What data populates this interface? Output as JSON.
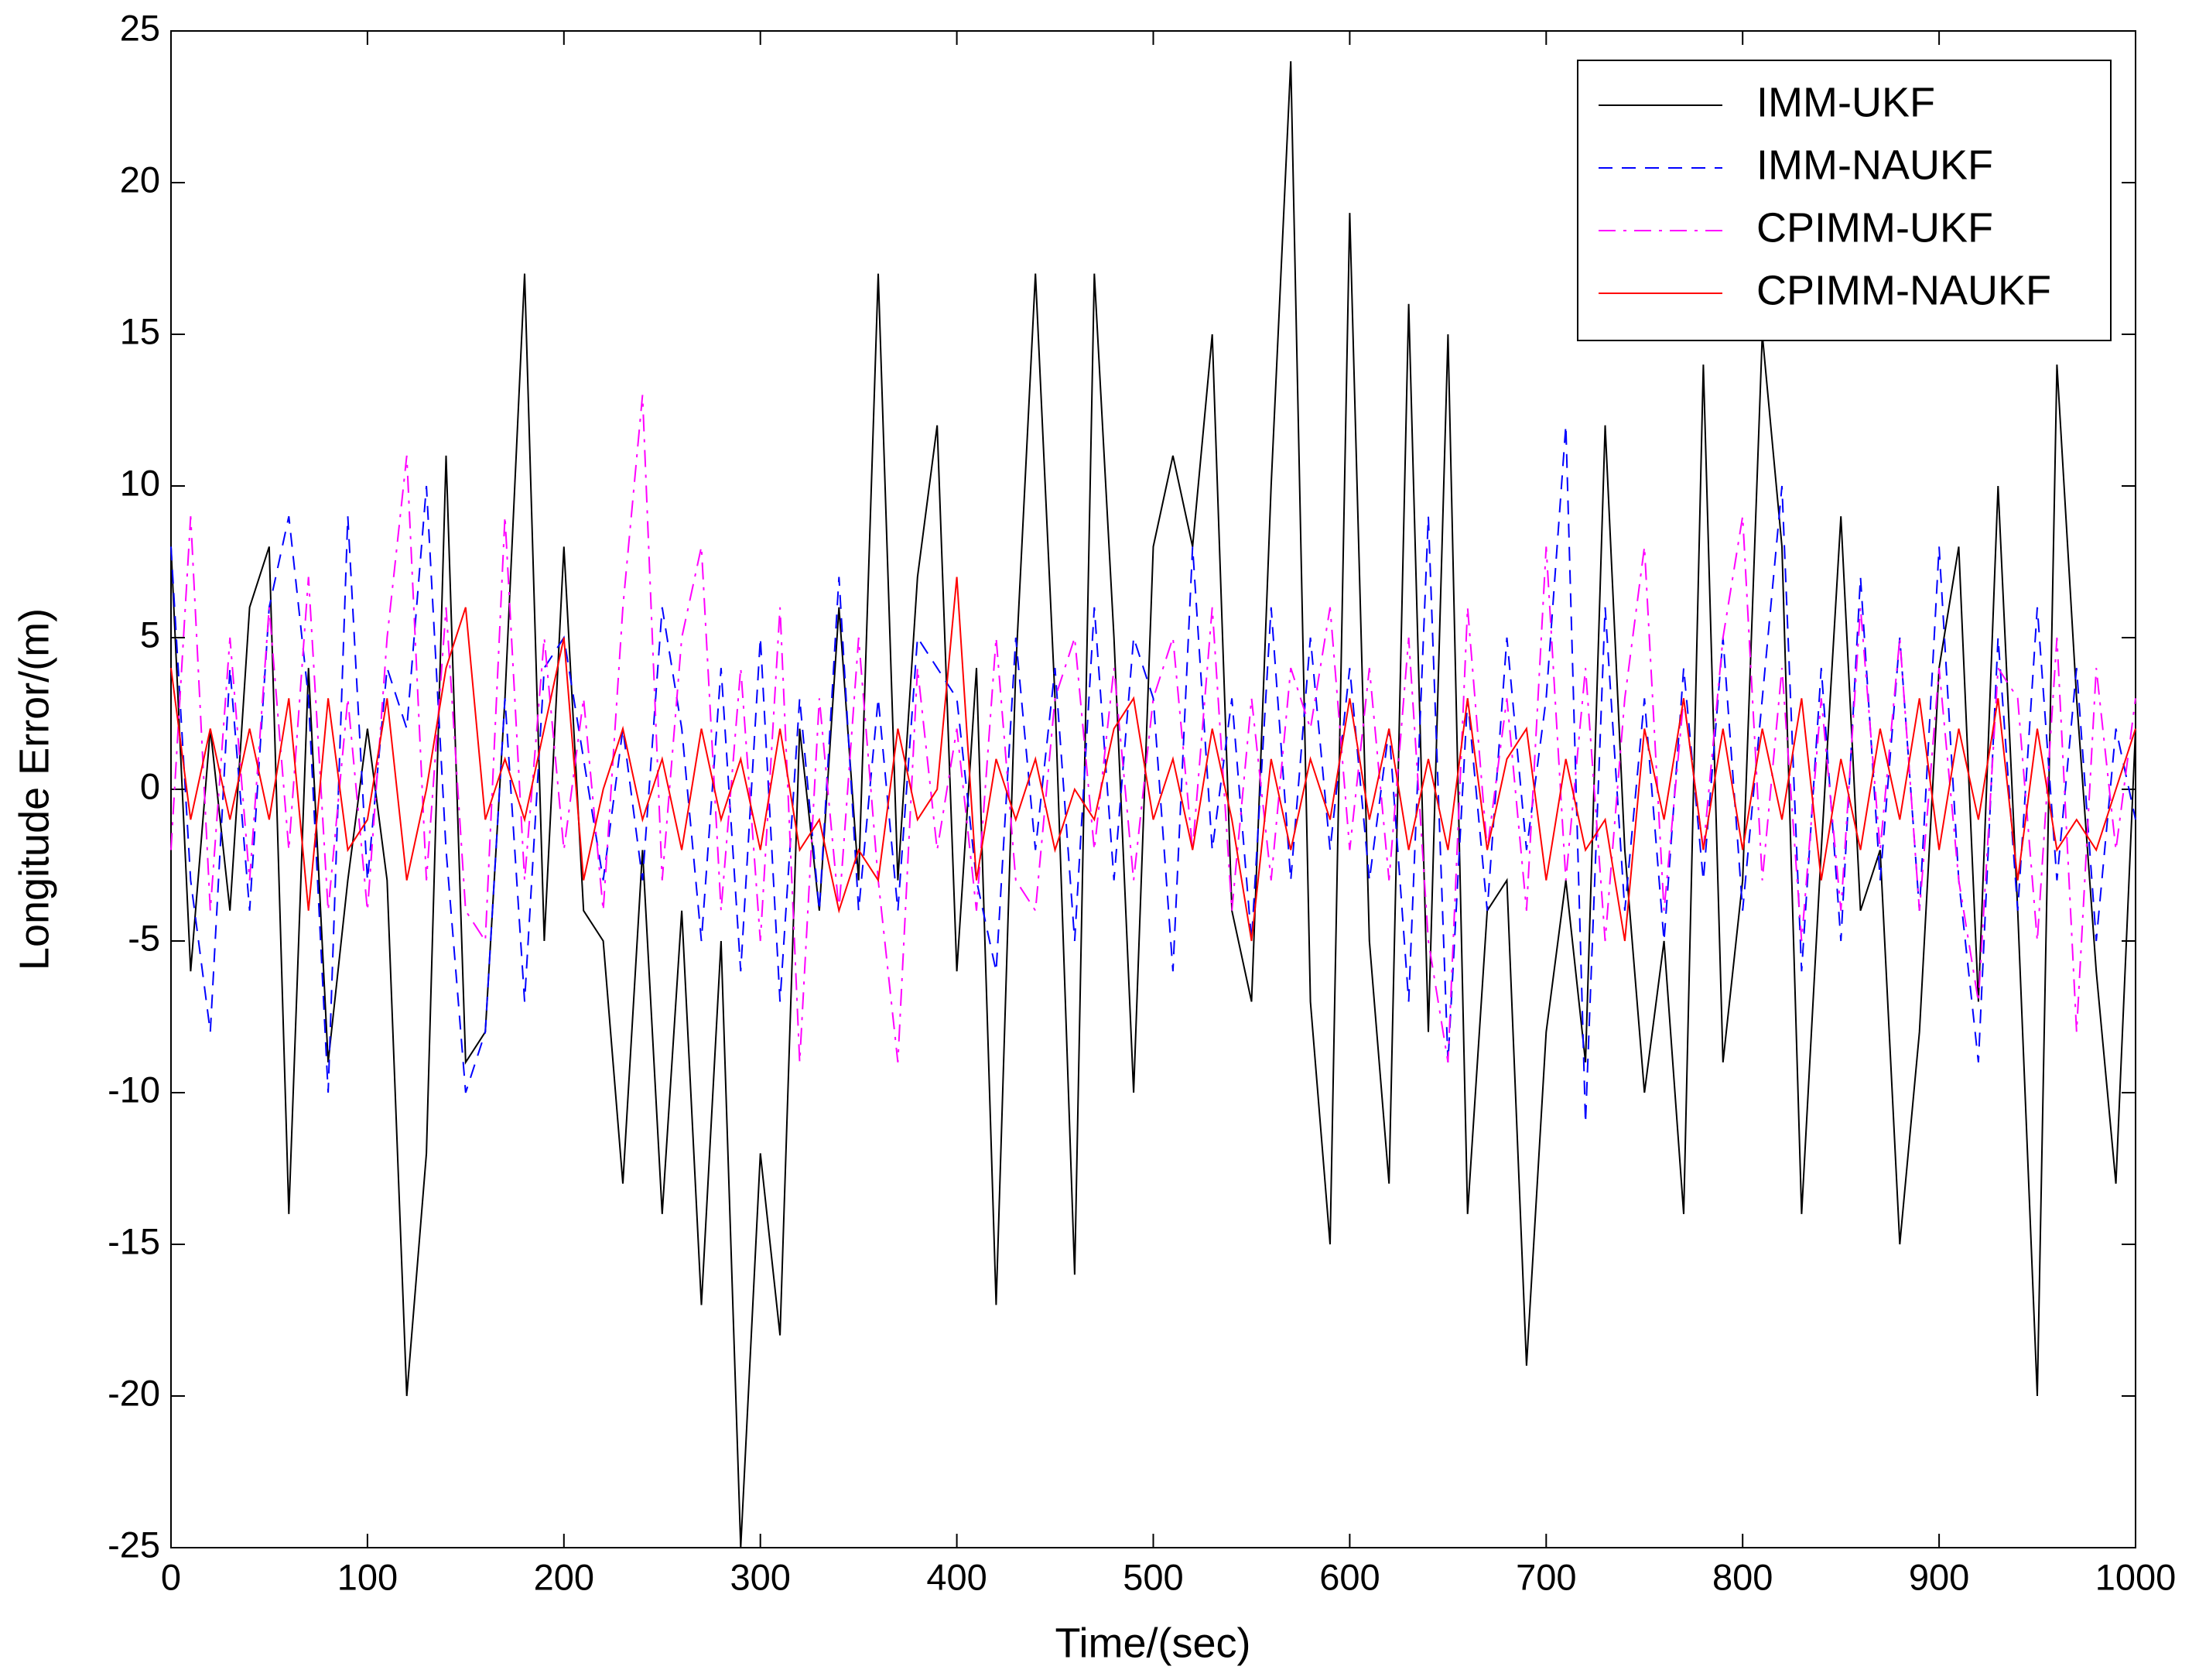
{
  "chart_data": {
    "type": "line",
    "xlabel": "Time/(sec)",
    "ylabel": "Longitude Error/(m)",
    "x": [
      0,
      10,
      20,
      30,
      40,
      50,
      60,
      70,
      80,
      90,
      100,
      110,
      120,
      130,
      140,
      150,
      160,
      170,
      180,
      190,
      200,
      210,
      220,
      230,
      240,
      250,
      260,
      270,
      280,
      290,
      300,
      310,
      320,
      330,
      340,
      350,
      360,
      370,
      380,
      390,
      400,
      410,
      420,
      430,
      440,
      450,
      460,
      470,
      480,
      490,
      500,
      510,
      520,
      530,
      540,
      550,
      560,
      570,
      580,
      590,
      600,
      610,
      620,
      630,
      640,
      650,
      660,
      670,
      680,
      690,
      700,
      710,
      720,
      730,
      740,
      750,
      760,
      770,
      780,
      790,
      800,
      810,
      820,
      830,
      840,
      850,
      860,
      870,
      880,
      890,
      900,
      910,
      920,
      930,
      940,
      950,
      960,
      970,
      980,
      990,
      1000
    ],
    "series": [
      {
        "name": "IMM-UKF",
        "color": "#000000",
        "linestyle": "-",
        "values": [
          8,
          -6,
          2,
          -4,
          6,
          8,
          -14,
          4,
          -9,
          -3,
          2,
          -3,
          -20,
          -12,
          11,
          -9,
          -8,
          3,
          17,
          -5,
          8,
          -4,
          -5,
          -13,
          -2,
          -14,
          -4,
          -17,
          -5,
          -25,
          -12,
          -18,
          2,
          -4,
          6,
          -3,
          17,
          -3,
          7,
          12,
          -6,
          4,
          -17,
          4,
          17,
          3,
          -16,
          17,
          5,
          -10,
          8,
          11,
          8,
          15,
          -4,
          -7,
          10,
          24,
          -7,
          -15,
          19,
          -5,
          -13,
          16,
          -8,
          15,
          -14,
          -4,
          -3,
          -19,
          -8,
          -3,
          -9,
          12,
          -2,
          -10,
          -5,
          -14,
          14,
          -9,
          -3,
          15,
          8,
          -14,
          -2,
          9,
          -4,
          -2,
          -15,
          -8,
          4,
          8,
          -7,
          10,
          -4,
          -20,
          14,
          3,
          -6,
          -13,
          2
        ]
      },
      {
        "name": "IMM-NAUKF",
        "color": "#0000ff",
        "linestyle": "--",
        "values": [
          8,
          -3,
          -8,
          4,
          -4,
          6,
          9,
          3,
          -10,
          9,
          -3,
          4,
          2,
          10,
          -2,
          -10,
          -8,
          3,
          -7,
          4,
          5,
          1,
          -3,
          2,
          -3,
          6,
          2,
          -5,
          4,
          -6,
          5,
          -7,
          3,
          -4,
          7,
          -4,
          3,
          -4,
          5,
          4,
          3,
          -3,
          -6,
          5,
          -2,
          4,
          -5,
          6,
          -3,
          5,
          3,
          -6,
          8,
          -2,
          3,
          -5,
          6,
          -3,
          5,
          -2,
          4,
          -3,
          2,
          -7,
          9,
          -9,
          3,
          -4,
          5,
          -2,
          3,
          12,
          -11,
          6,
          -4,
          3,
          -5,
          4,
          -3,
          5,
          -4,
          3,
          10,
          -6,
          4,
          -5,
          7,
          -3,
          5,
          -4,
          8,
          -3,
          -9,
          5,
          -4,
          6,
          -3,
          4,
          -5,
          2,
          -1
        ]
      },
      {
        "name": "CPIMM-UKF",
        "color": "#ff00ff",
        "linestyle": "-.",
        "values": [
          -2,
          9,
          -4,
          5,
          -3,
          6,
          -2,
          7,
          -4,
          3,
          -4,
          5,
          11,
          -3,
          6,
          -4,
          -5,
          9,
          -3,
          5,
          -2,
          3,
          -4,
          6,
          13,
          -3,
          5,
          8,
          -4,
          4,
          -5,
          6,
          -9,
          3,
          -4,
          5,
          -3,
          -9,
          4,
          -2,
          2,
          -4,
          5,
          -3,
          -4,
          3,
          5,
          -2,
          4,
          -3,
          3,
          5,
          -2,
          6,
          -4,
          3,
          -3,
          4,
          2,
          6,
          -2,
          4,
          -3,
          5,
          -5,
          -9,
          6,
          -2,
          3,
          -4,
          8,
          -3,
          4,
          -5,
          3,
          8,
          -4,
          3,
          -2,
          5,
          9,
          -3,
          4,
          -5,
          3,
          -4,
          6,
          -2,
          5,
          -4,
          4,
          -3,
          -7,
          4,
          3,
          -5,
          5,
          -8,
          4,
          -2,
          3
        ]
      },
      {
        "name": "CPIMM-NAUKF",
        "color": "#ff0000",
        "linestyle": "-",
        "values": [
          4,
          -1,
          2,
          -1,
          2,
          -1,
          3,
          -4,
          3,
          -2,
          -1,
          3,
          -3,
          0,
          4,
          6,
          -1,
          1,
          -1,
          2,
          5,
          -3,
          0,
          2,
          -1,
          1,
          -2,
          2,
          -1,
          1,
          -2,
          2,
          -2,
          -1,
          -4,
          -2,
          -3,
          2,
          -1,
          0,
          7,
          -3,
          1,
          -1,
          1,
          -2,
          0,
          -1,
          2,
          3,
          -1,
          1,
          -2,
          2,
          -1,
          -5,
          1,
          -2,
          1,
          -1,
          3,
          -1,
          2,
          -2,
          1,
          -2,
          3,
          -2,
          1,
          2,
          -3,
          1,
          -2,
          -1,
          -5,
          2,
          -1,
          3,
          -2,
          2,
          -2,
          2,
          -1,
          3,
          -3,
          1,
          -2,
          2,
          -1,
          3,
          -2,
          2,
          -1,
          3,
          -3,
          2,
          -2,
          -1,
          -2,
          0,
          2
        ]
      }
    ],
    "xlim": [
      0,
      1000
    ],
    "xticks": [
      0,
      100,
      200,
      300,
      400,
      500,
      600,
      700,
      800,
      900,
      1000
    ],
    "ylim": [
      -25,
      25
    ],
    "yticks": [
      -25,
      -20,
      -15,
      -10,
      -5,
      0,
      5,
      10,
      15,
      20,
      25
    ],
    "grid": false,
    "legend": "upper right"
  }
}
